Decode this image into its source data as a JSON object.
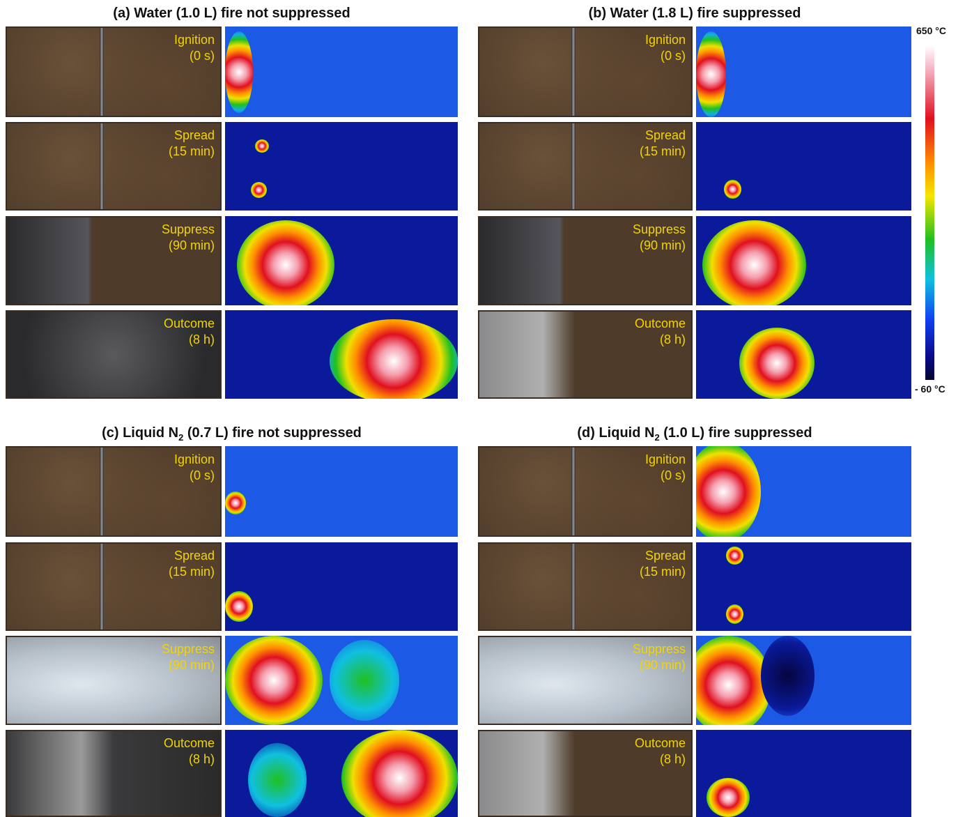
{
  "figure": {
    "panels": [
      {
        "title": {
          "text": "(a) Water (1.0 L) fire not suppressed"
        },
        "rows": [
          {
            "label": "Ignition",
            "time": "(0 s)"
          },
          {
            "label": "Spread",
            "time": "(15 min)"
          },
          {
            "label": "Suppress",
            "time": "(90 min)"
          },
          {
            "label": "Outcome",
            "time": "(8 h)"
          }
        ]
      },
      {
        "title": {
          "text": "(b) Water (1.8 L) fire suppressed"
        },
        "rows": [
          {
            "label": "Ignition",
            "time": "(0 s)"
          },
          {
            "label": "Spread",
            "time": "(15 min)"
          },
          {
            "label": "Suppress",
            "time": "(90 min)"
          },
          {
            "label": "Outcome",
            "time": "(8 h)"
          }
        ]
      },
      {
        "title": {
          "text": "(c) Liquid N",
          "sub": "2",
          "rest": " (0.7 L) fire not suppressed"
        },
        "rows": [
          {
            "label": "Ignition",
            "time": "(0 s)"
          },
          {
            "label": "Spread",
            "time": "(15 min)"
          },
          {
            "label": "Suppress",
            "time": "(90 min)"
          },
          {
            "label": "Outcome",
            "time": "(8 h)"
          }
        ]
      },
      {
        "title": {
          "text": "(d) Liquid N",
          "sub": "2",
          "rest": " (1.0 L) fire suppressed"
        },
        "rows": [
          {
            "label": "Ignition",
            "time": "(0 s)"
          },
          {
            "label": "Spread",
            "time": "(15 min)"
          },
          {
            "label": "Suppress",
            "time": "(90 min)"
          },
          {
            "label": "Outcome",
            "time": "(8 h)"
          }
        ]
      }
    ],
    "colorbar": {
      "max": "650 °C",
      "min": "- 60 °C"
    }
  }
}
